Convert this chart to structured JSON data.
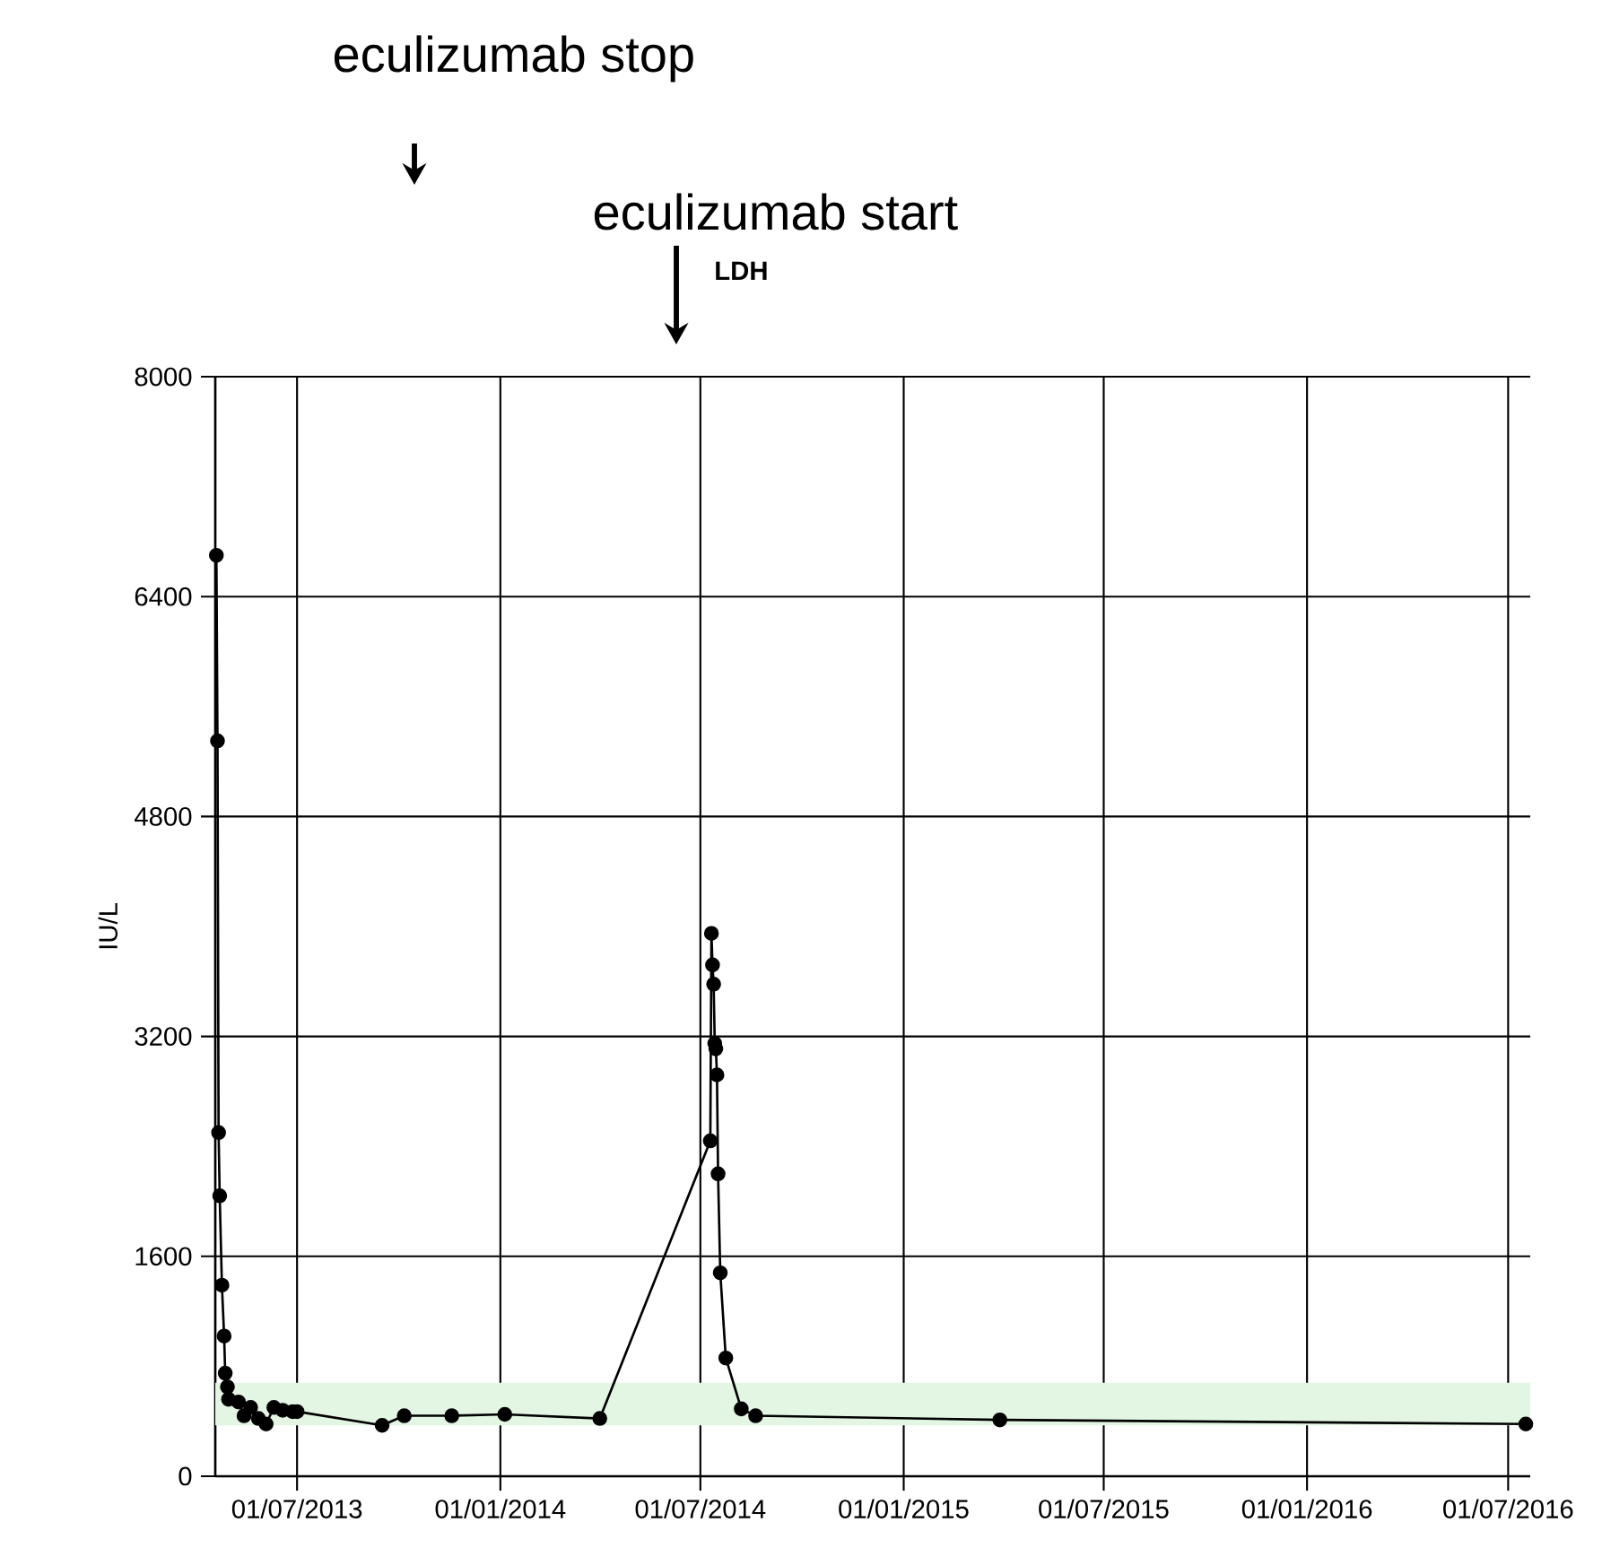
{
  "chart_data": {
    "type": "line",
    "title": "LDH",
    "ylabel": "IU/L",
    "xlim": [
      "2013-04-18",
      "2016-07-21"
    ],
    "xticks": [
      {
        "value": "2013-07-01",
        "label": "01/07/2013"
      },
      {
        "value": "2014-01-01",
        "label": "01/01/2014"
      },
      {
        "value": "2014-07-01",
        "label": "01/07/2014"
      },
      {
        "value": "2015-01-01",
        "label": "01/01/2015"
      },
      {
        "value": "2015-07-01",
        "label": "01/07/2015"
      },
      {
        "value": "2016-01-01",
        "label": "01/01/2016"
      },
      {
        "value": "2016-07-01",
        "label": "01/07/2016"
      }
    ],
    "ylim": [
      0,
      8000
    ],
    "yticks": [
      0,
      1600,
      3200,
      4800,
      6400,
      8000
    ],
    "grid": true,
    "marker": "circle",
    "line_style": "solid",
    "series": [
      {
        "color": "#000000",
        "x": [
          "2013-04-19",
          "2013-04-20",
          "2013-04-21",
          "2013-04-22",
          "2013-04-24",
          "2013-04-26",
          "2013-04-27",
          "2013-04-29",
          "2013-04-30",
          "2013-05-09",
          "2013-05-14",
          "2013-05-20",
          "2013-05-27",
          "2013-06-03",
          "2013-06-10",
          "2013-06-18",
          "2013-06-27",
          "2013-07-01",
          "2013-09-16",
          "2013-10-06",
          "2013-11-18",
          "2014-01-05",
          "2014-04-01",
          "2014-07-10",
          "2014-07-11",
          "2014-07-12",
          "2014-07-13",
          "2014-07-14",
          "2014-07-15",
          "2014-07-16",
          "2014-07-17",
          "2014-07-19",
          "2014-07-24",
          "2014-08-07",
          "2014-08-20",
          "2015-03-29",
          "2016-07-17"
        ],
        "values": [
          6700,
          5350,
          2500,
          2040,
          1390,
          1020,
          750,
          650,
          560,
          540,
          440,
          500,
          420,
          380,
          500,
          480,
          470,
          470,
          370,
          440,
          440,
          450,
          420,
          2440,
          3950,
          3720,
          3580,
          3150,
          3110,
          2920,
          2200,
          1480,
          860,
          490,
          440,
          410,
          380
        ]
      }
    ],
    "bands": [
      {
        "axis": "y",
        "from": 370,
        "to": 680,
        "color": "#e3f6e3"
      }
    ],
    "annotations": [
      "eculizumab stop",
      "eculizumab start"
    ]
  }
}
